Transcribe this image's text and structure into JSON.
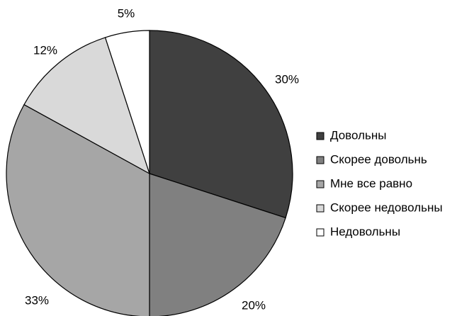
{
  "chart_data": {
    "type": "pie",
    "categories": [
      "Довольны",
      "Скорее довольнь",
      "Мне все равно",
      "Скорее недовольны",
      "Недовольны"
    ],
    "values": [
      30,
      20,
      33,
      12,
      5
    ],
    "value_labels": [
      "30%",
      "20%",
      "33%",
      "12%",
      "5%"
    ],
    "colors": [
      "#404040",
      "#808080",
      "#a6a6a6",
      "#d9d9d9",
      "#ffffff"
    ],
    "legend": "right"
  }
}
